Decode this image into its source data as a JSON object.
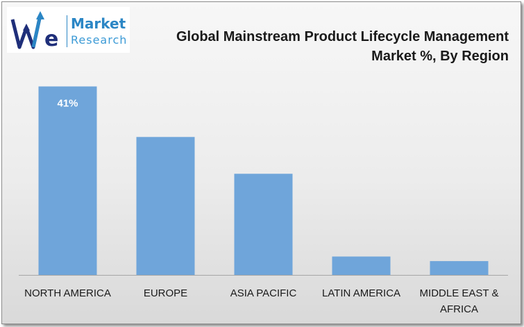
{
  "logo": {
    "word1": "Market",
    "word2": "Research",
    "mark": "WE",
    "colors": {
      "dark": "#1f2f7a",
      "light": "#2b86c5"
    }
  },
  "chart_data": {
    "type": "bar",
    "title_lines": [
      "Global Mainstream Product Lifecycle Management",
      "Market %, By Region"
    ],
    "categories": [
      "NORTH AMERICA",
      "EUROPE",
      "ASIA PACIFIC",
      "LATIN AMERICA",
      "MIDDLE EAST & AFRICA"
    ],
    "category_lines": [
      [
        "NORTH AMERICA"
      ],
      [
        "EUROPE"
      ],
      [
        "ASIA PACIFIC"
      ],
      [
        "LATIN AMERICA"
      ],
      [
        "MIDDLE EAST &",
        "AFRICA"
      ]
    ],
    "values": [
      41,
      30,
      22,
      4,
      3
    ],
    "data_labels": [
      "41%",
      "",
      "",
      "",
      ""
    ],
    "ylim": [
      0,
      45
    ],
    "grid": false,
    "legend": "none",
    "bar_color": "#6fa5da",
    "axis_color": "#a6a6a6"
  }
}
